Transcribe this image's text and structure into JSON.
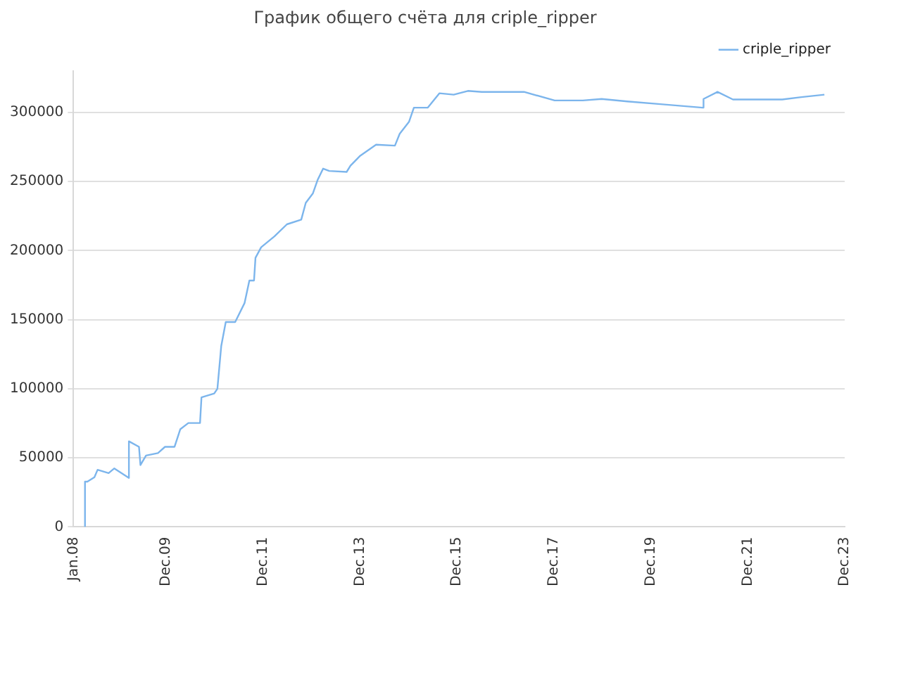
{
  "chart_data": {
    "type": "line",
    "title": "График общего счёта для criple_ripper",
    "x": [
      "2008-03-28",
      "2008-03-28",
      "2008-04-15",
      "2008-06-07",
      "2008-07-01",
      "2008-09-22",
      "2008-11-04",
      "2009-02-22",
      "2009-02-22",
      "2009-05-09",
      "2009-05-20",
      "2009-07-01",
      "2009-09-29",
      "2009-11-21",
      "2010-02-01",
      "2010-03-16",
      "2010-05-16",
      "2010-08-12",
      "2010-08-23",
      "2010-11-27",
      "2010-12-21",
      "2011-01-19",
      "2011-02-22",
      "2011-05-04",
      "2011-07-14",
      "2011-08-19",
      "2011-09-23",
      "2011-10-04",
      "2011-11-16",
      "2012-02-24",
      "2012-05-28",
      "2012-09-13",
      "2012-10-17",
      "2012-12-10",
      "2013-01-14",
      "2013-02-25",
      "2013-04-12",
      "2013-08-21",
      "2013-09-19",
      "2013-11-28",
      "2014-03-31",
      "2014-08-20",
      "2014-09-25",
      "2014-12-04",
      "2015-01-10",
      "2015-04-25",
      "2015-07-21",
      "2015-11-06",
      "2016-02-21",
      "2016-06-05",
      "2017-04-19",
      "2017-12-06",
      "2018-07-06",
      "2018-11-25",
      "2019-06-06",
      "2020-02-11",
      "2020-12-25",
      "2021-01-01",
      "2021-04-16",
      "2021-08-11",
      "2022-08-17",
      "2023-01-08",
      "2023-07-01"
    ],
    "series": [
      {
        "name": "criple_ripper",
        "color": "#7cb5ec",
        "values": [
          0,
          32800,
          32800,
          36000,
          41400,
          39000,
          42400,
          35500,
          62000,
          58000,
          44800,
          51700,
          53500,
          58000,
          58000,
          70700,
          75200,
          75200,
          93800,
          96600,
          100000,
          131000,
          148300,
          148300,
          162100,
          178300,
          178300,
          194800,
          202400,
          210300,
          219000,
          222400,
          234500,
          241400,
          251000,
          259300,
          257600,
          256900,
          261400,
          268300,
          276600,
          275900,
          284500,
          293100,
          303400,
          303400,
          313800,
          312800,
          315500,
          314800,
          314800,
          308600,
          308600,
          309700,
          307900,
          305900,
          303400,
          309700,
          314800,
          309300,
          309300,
          311000,
          312800
        ]
      }
    ],
    "xlim": [
      "2008-01",
      "2023-12"
    ],
    "xticks": [
      {
        "value": "2008-01",
        "label": "Jan.08"
      },
      {
        "value": "2009-12",
        "label": "Dec.09"
      },
      {
        "value": "2011-12",
        "label": "Dec.11"
      },
      {
        "value": "2013-12",
        "label": "Dec.13"
      },
      {
        "value": "2015-12",
        "label": "Dec.15"
      },
      {
        "value": "2017-12",
        "label": "Dec.17"
      },
      {
        "value": "2019-12",
        "label": "Dec.19"
      },
      {
        "value": "2021-12",
        "label": "Dec.21"
      },
      {
        "value": "2023-12",
        "label": "Dec.23"
      }
    ],
    "ylim": [
      0,
      330000
    ],
    "yticks": [
      0,
      50000,
      100000,
      150000,
      200000,
      250000,
      300000
    ],
    "grid": "y",
    "legend": "top right",
    "marker": "none",
    "line_style": "solid"
  }
}
